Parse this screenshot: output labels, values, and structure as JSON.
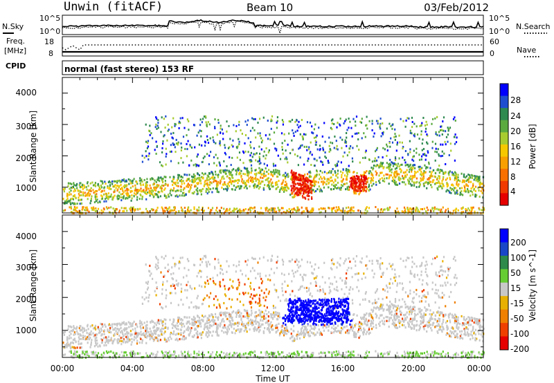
{
  "header": {
    "station": "Unwin (fitACF)",
    "beam": "Beam 10",
    "date": "03/Feb/2012"
  },
  "top_panels": {
    "nsky_label": "N.Sky",
    "nsky_ticks": [
      "10^5",
      "10^0"
    ],
    "nsearch_label": "N.Search",
    "nsearch_ticks": [
      "10^5",
      "10^0"
    ],
    "freq_label_line1": "Freq.",
    "freq_label_line2": "[MHz]",
    "freq_ticks": [
      "18",
      "8"
    ],
    "nave_label": "Nave",
    "nave_ticks": [
      "60",
      "0"
    ],
    "cpid_label": "CPID",
    "cpid_text": "normal (fast stereo) 153 RF"
  },
  "x_axis": {
    "label": "Time UT",
    "ticks": [
      "00:00",
      "04:00",
      "08:00",
      "12:00",
      "16:00",
      "20:00",
      "00:00"
    ],
    "range_hours": [
      0,
      24
    ]
  },
  "panels": [
    {
      "ylabel": "Slant Range [km]",
      "yticks": [
        "4000",
        "3000",
        "2000",
        "1000"
      ],
      "colorbar_label": "Power [dB]",
      "colorbar_ticks": [
        "28",
        "24",
        "20",
        "16",
        "12",
        "8",
        "4"
      ],
      "colors": [
        "#0000ff",
        "#1f4fd0",
        "#2f8a50",
        "#5aaa40",
        "#a8cc30",
        "#f6c800",
        "#f8a000",
        "#f87000",
        "#f03a00",
        "#e60000"
      ]
    },
    {
      "ylabel": "Slant Range [km]",
      "yticks": [
        "4000",
        "3000",
        "2000",
        "1000"
      ],
      "colorbar_label": "Velocity [m s^-1]",
      "colorbar_ticks": [
        "200",
        "100",
        "50",
        "15",
        "-15",
        "-50",
        "-100",
        "-200"
      ],
      "colors": [
        "#0000ff",
        "#1a46c8",
        "#2e8a4a",
        "#66cc33",
        "#c8c8c8",
        "#e8b000",
        "#f08000",
        "#f04000",
        "#e60000"
      ]
    }
  ],
  "chart_data": [
    {
      "type": "heatmap",
      "title": "Power",
      "xlabel": "Time UT",
      "ylabel": "Slant Range [km]",
      "xlim": [
        0,
        24
      ],
      "ylim": [
        180,
        4500
      ],
      "colorbar": {
        "label": "Power [dB]",
        "ticks": [
          4,
          8,
          12,
          16,
          20,
          24,
          28
        ]
      },
      "scatter_band": {
        "main_echo_range_km": {
          "x": [
            0,
            4,
            8,
            12,
            14,
            16,
            18,
            20,
            24
          ],
          "y": [
            700,
            900,
            1200,
            1300,
            1100,
            1200,
            1400,
            1300,
            1000
          ]
        },
        "upper_echo_range_km": [
          1800,
          3300
        ]
      }
    },
    {
      "type": "heatmap",
      "title": "Velocity",
      "xlabel": "Time UT",
      "ylabel": "Slant Range [km]",
      "xlim": [
        0,
        24
      ],
      "ylim": [
        180,
        4500
      ],
      "colorbar": {
        "label": "Velocity [m s^-1]",
        "ticks": [
          -200,
          -100,
          -50,
          -15,
          15,
          50,
          100,
          200
        ]
      },
      "notable": {
        "blue_positive_velocity_hours": [
          12.5,
          16.5
        ],
        "range_km": [
          1200,
          2100
        ]
      }
    },
    {
      "type": "line",
      "title": "N.Sky / N.Search",
      "xlim": [
        0,
        24
      ],
      "note": "log scale 10^0 to 10^5"
    },
    {
      "type": "line",
      "title": "Freq. / Nave",
      "freq_ylim": [
        8,
        18
      ],
      "nave_ylim": [
        0,
        60
      ]
    }
  ]
}
